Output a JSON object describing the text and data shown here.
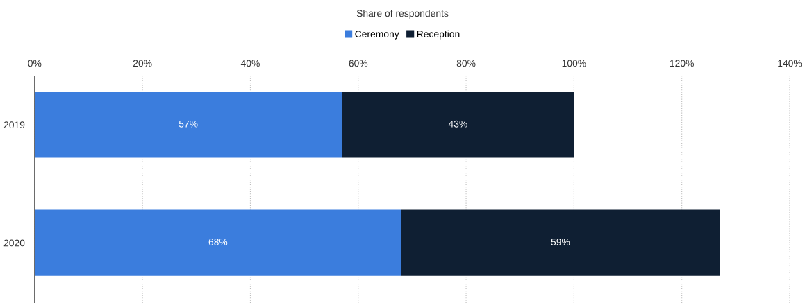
{
  "chart_data": {
    "type": "bar",
    "orientation": "horizontal",
    "stacked": true,
    "xlabel": "Share of respondents",
    "categories": [
      "2019",
      "2020"
    ],
    "series": [
      {
        "name": "Ceremony",
        "color": "#3b7ddd",
        "values": [
          57,
          68
        ],
        "value_labels": [
          "57%",
          "68%"
        ]
      },
      {
        "name": "Reception",
        "color": "#0f1f33",
        "values": [
          43,
          59
        ],
        "value_labels": [
          "43%",
          "59%"
        ]
      }
    ],
    "xlim": [
      0,
      140
    ],
    "xticks": [
      {
        "value": 0,
        "label": "0%"
      },
      {
        "value": 20,
        "label": "20%"
      },
      {
        "value": 40,
        "label": "40%"
      },
      {
        "value": 60,
        "label": "60%"
      },
      {
        "value": 80,
        "label": "80%"
      },
      {
        "value": 100,
        "label": "100%"
      },
      {
        "value": 120,
        "label": "120%"
      },
      {
        "value": 140,
        "label": "140%"
      }
    ],
    "grid": "x",
    "legend": "top"
  }
}
